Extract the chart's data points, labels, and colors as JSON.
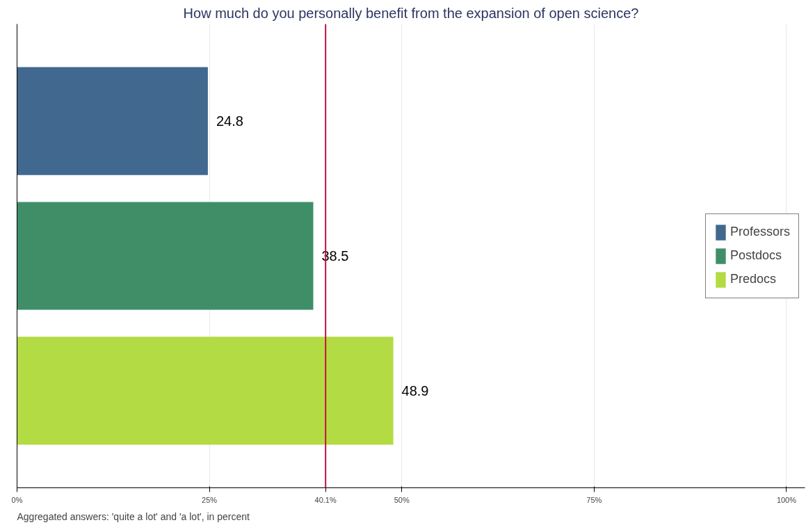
{
  "chart_data": {
    "type": "bar",
    "orientation": "horizontal",
    "title": "How much do you personally benefit from the expansion of open science?",
    "categories": [
      null,
      null,
      null
    ],
    "series": [
      {
        "name": "Professors",
        "color": "#41688e",
        "values": [
          24.8,
          null,
          null
        ]
      },
      {
        "name": "Postdocs",
        "color": "#408e68",
        "values": [
          null,
          38.5,
          null
        ]
      },
      {
        "name": "Predocs",
        "color": "#b3db43",
        "values": [
          null,
          null,
          48.9
        ]
      }
    ],
    "xlim": [
      0,
      102.4
    ],
    "xticks": [
      {
        "value": 0,
        "label": "0%"
      },
      {
        "value": 25,
        "label": "25%"
      },
      {
        "value": 40.1,
        "label": "40.1%"
      },
      {
        "value": 50,
        "label": "50%"
      },
      {
        "value": 75,
        "label": "75%"
      },
      {
        "value": 100,
        "label": "100%"
      }
    ],
    "ref_lines": [
      {
        "axis": "x",
        "value": 40.1,
        "color": "#c0103f"
      }
    ],
    "data_labels": true,
    "grid": "x",
    "legend": "right",
    "annotations": [
      "Aggregated answers: 'quite a lot' and 'a lot', in percent"
    ]
  }
}
